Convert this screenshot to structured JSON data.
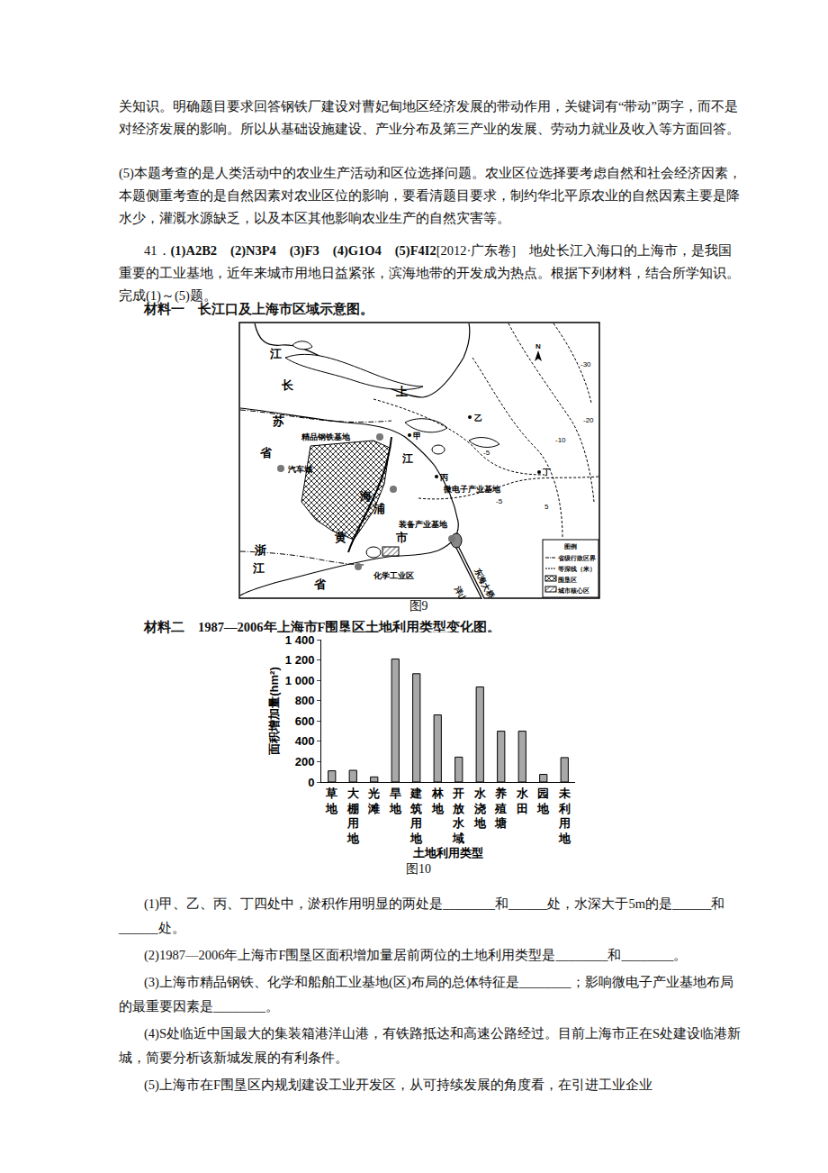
{
  "text_top": [
    "关知识。明确题目要求回答钢铁厂建设对曹妃甸地区经济发展的带动作用，关键词有“带动”两字，而不是对经济发展的影响。所以从基础设施建设、产业分布及第三产业的发展、劳动力就业及收入等方面回答。",
    "(5)本题考查的是人类活动中的农业生产活动和区位选择问题。农业区位选择要考虑自然和社会经济因素，本题侧重考查的是自然因素对农业区位的影响，要看清题目要求，制约华北平原农业的自然因素主要是降水少，灌溉水源缺乏，以及本区其他影响农业生产的自然灾害等。"
  ],
  "question_intro": {
    "number": "41．",
    "answers": "(1)A2B2　(2)N3P4　(3)F3　(4)G1O4　(5)F4I2",
    "text": "[2012·广东卷]　地处长江入海口的上海市，是我国重要的工业基地，近年来城市用地日益紧张，滨海地带的开发成为热点。根据下列材料，结合所学知识。完成(1)～(5)题。"
  },
  "material1": {
    "caption": "材料一　长江口及上海市区域示意图。",
    "figure": "图9",
    "labels": [
      "江",
      "长",
      "苏",
      "省",
      "上",
      "乙",
      "甲",
      "精品钢铁基地",
      "汽车城",
      "江",
      "丙",
      "丁",
      "微电子产业基地",
      "海",
      "浦",
      "装备产业基地",
      "黄",
      "市",
      "浙",
      "江",
      "省",
      "化学工业区",
      "东海大桥",
      "洋山港",
      "-5",
      "-5",
      "-10",
      "-20",
      "-30",
      "5"
    ],
    "north": "N",
    "legend": {
      "title": "图例",
      "items": [
        "省级行政区界",
        "等深线（米）",
        "围垦区",
        "城市核心区"
      ]
    }
  },
  "material2": {
    "caption": "材料二　1987—2006年上海市F围垦区土地利用类型变化图。",
    "figure": "图10"
  },
  "chart_data": {
    "type": "bar",
    "categories": [
      "草地",
      "大棚用地",
      "光滩",
      "旱地",
      "建筑用地",
      "林地",
      "开放水域",
      "水浇地",
      "养殖塘",
      "水田",
      "园地",
      "未利用地"
    ],
    "values": [
      110,
      115,
      50,
      1210,
      1065,
      660,
      245,
      935,
      500,
      500,
      75,
      240
    ],
    "x_label": "土地利用类型",
    "y_label": "面积增加量(hm²)",
    "color": "#a8a8a8",
    "ylim": [
      0,
      1400
    ],
    "yticks": [
      0,
      200,
      400,
      600,
      800,
      {
        "value": 1000,
        "label": "1 000"
      },
      {
        "value": 1200,
        "label": "1 200"
      },
      {
        "value": 1400,
        "label": "1 400"
      }
    ],
    "grid": false
  },
  "questions": [
    "(1)甲、乙、丙、丁四处中，淤积作用明显的两处是________和______处，水深大于5m的是______和______处。",
    "(2)1987—2006年上海市F围垦区面积增加量居前两位的土地利用类型是________和________。",
    "(3)上海市精品钢铁、化学和船舶工业基地(区)布局的总体特征是________；影响微电子产业基地布局的最重要因素是________。",
    "(4)S处临近中国最大的集装箱港洋山港，有铁路抵达和高速公路经过。目前上海市正在S处建设临港新城，简要分析该新城发展的有利条件。",
    "(5)上海市在F围垦区内规划建设工业开发区，从可持续发展的角度看，在引进工业企业"
  ]
}
